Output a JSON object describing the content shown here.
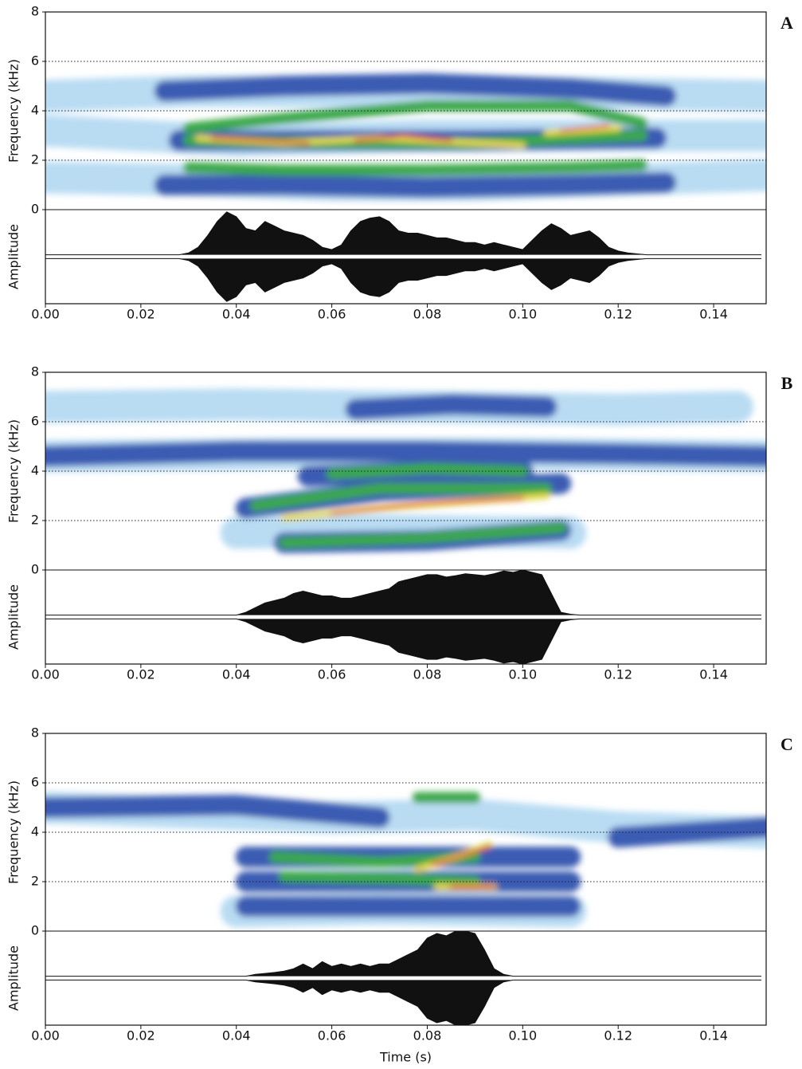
{
  "chart_data": [
    {
      "type": "spectrogram",
      "label": "A",
      "ylabel": "Frequency (kHz)",
      "ylim": [
        0,
        8
      ],
      "yticks": [
        0,
        2,
        4,
        6,
        8
      ],
      "grid": true,
      "xlim": [
        0,
        0.151
      ],
      "xticks": [
        {
          "value": 0,
          "label": "0.00"
        },
        0.02,
        0.04,
        0.06,
        0.08,
        {
          "value": 0.1,
          "label": "0.10"
        },
        0.12,
        0.14
      ],
      "series": [
        {
          "color": "#b9dcf3",
          "x": [
            0,
            0.03,
            0.06,
            0.09,
            0.12,
            0.151
          ],
          "values": [
            4.6,
            4.8,
            4.8,
            4.8,
            4.7,
            4.6
          ]
        },
        {
          "color": "#b9dcf3",
          "x": [
            0,
            0.03,
            0.06,
            0.09,
            0.12,
            0.151
          ],
          "values": [
            1.3,
            1.2,
            1.0,
            1.0,
            1.2,
            1.4
          ]
        },
        {
          "color": "#b9dcf3",
          "x": [
            0,
            0.04,
            0.08,
            0.12,
            0.151
          ],
          "values": [
            3.2,
            2.8,
            3.0,
            3.0,
            3.0
          ]
        },
        {
          "color": "#3b5bb2",
          "x": [
            0.025,
            0.05,
            0.08,
            0.11,
            0.13
          ],
          "values": [
            4.8,
            5.0,
            5.1,
            4.9,
            4.6
          ]
        },
        {
          "color": "#3b5bb2",
          "x": [
            0.025,
            0.05,
            0.08,
            0.11,
            0.13
          ],
          "values": [
            1.0,
            1.0,
            0.9,
            1.0,
            1.1
          ]
        },
        {
          "color": "#3b5bb2",
          "x": [
            0.028,
            0.06,
            0.09,
            0.128
          ],
          "values": [
            2.8,
            2.8,
            2.8,
            2.9
          ]
        },
        {
          "color": "#3aa84a",
          "x": [
            0.03,
            0.05,
            0.08,
            0.11,
            0.125
          ],
          "values": [
            3.3,
            3.7,
            4.2,
            4.2,
            3.5
          ]
        },
        {
          "color": "#3aa84a",
          "x": [
            0.03,
            0.05,
            0.08,
            0.11,
            0.125
          ],
          "values": [
            1.7,
            1.6,
            1.6,
            1.7,
            1.8
          ]
        },
        {
          "color": "#3aa84a",
          "x": [
            0.03,
            0.06,
            0.09,
            0.125
          ],
          "values": [
            2.8,
            2.7,
            2.7,
            3.0
          ]
        },
        {
          "color": "#e6d94c",
          "x": [
            0.032,
            0.05,
            0.07,
            0.09,
            0.1
          ],
          "values": [
            2.9,
            2.7,
            2.9,
            2.7,
            2.6
          ]
        },
        {
          "color": "#e6d94c",
          "x": [
            0.105,
            0.12
          ],
          "values": [
            3.1,
            3.3
          ]
        },
        {
          "color": "#e2452b",
          "x": [
            0.035,
            0.045,
            0.055
          ],
          "values": [
            2.9,
            2.8,
            2.7
          ]
        },
        {
          "color": "#e2452b",
          "x": [
            0.065,
            0.075,
            0.085
          ],
          "values": [
            2.8,
            3.0,
            2.8
          ]
        },
        {
          "color": "#e2452b",
          "x": [
            0.108,
            0.118
          ],
          "values": [
            3.2,
            3.4
          ]
        }
      ],
      "waveform": {
        "ylabel": "Amplitude",
        "ylim": [
          -1,
          1
        ],
        "x": [
          0,
          0.002,
          0.004,
          0.006,
          0.008,
          0.01,
          0.012,
          0.014,
          0.016,
          0.018,
          0.02,
          0.022,
          0.024,
          0.026,
          0.028,
          0.03,
          0.032,
          0.034,
          0.036,
          0.038,
          0.04,
          0.042,
          0.044,
          0.046,
          0.048,
          0.05,
          0.052,
          0.054,
          0.056,
          0.058,
          0.06,
          0.062,
          0.064,
          0.066,
          0.068,
          0.07,
          0.072,
          0.074,
          0.076,
          0.078,
          0.08,
          0.082,
          0.084,
          0.086,
          0.088,
          0.09,
          0.092,
          0.094,
          0.096,
          0.098,
          0.1,
          0.102,
          0.104,
          0.106,
          0.108,
          0.11,
          0.112,
          0.114,
          0.116,
          0.118,
          0.12,
          0.122,
          0.124,
          0.126,
          0.128,
          0.13,
          0.132,
          0.134,
          0.136,
          0.138,
          0.14,
          0.142,
          0.144,
          0.146,
          0.148,
          0.15
        ],
        "values": [
          0.04,
          0.04,
          0.04,
          0.04,
          0.04,
          0.04,
          0.04,
          0.04,
          0.04,
          0.04,
          0.04,
          0.04,
          0.04,
          0.04,
          0.04,
          0.08,
          0.2,
          0.45,
          0.75,
          0.95,
          0.85,
          0.6,
          0.55,
          0.75,
          0.65,
          0.55,
          0.5,
          0.45,
          0.35,
          0.2,
          0.15,
          0.25,
          0.55,
          0.75,
          0.82,
          0.85,
          0.75,
          0.55,
          0.5,
          0.5,
          0.45,
          0.4,
          0.4,
          0.35,
          0.3,
          0.3,
          0.25,
          0.3,
          0.25,
          0.2,
          0.15,
          0.35,
          0.55,
          0.7,
          0.6,
          0.45,
          0.5,
          0.55,
          0.4,
          0.2,
          0.12,
          0.08,
          0.06,
          0.04,
          0.04,
          0.04,
          0.04,
          0.04,
          0.04,
          0.04,
          0.04,
          0.04,
          0.04,
          0.04,
          0.04,
          0.04
        ]
      }
    },
    {
      "type": "spectrogram",
      "label": "B",
      "ylabel": "Frequency (kHz)",
      "ylim": [
        0,
        8
      ],
      "yticks": [
        0,
        2,
        4,
        6,
        8
      ],
      "grid": true,
      "xlim": [
        0,
        0.151
      ],
      "xticks": [
        {
          "value": 0,
          "label": "0.00"
        },
        0.02,
        0.04,
        0.06,
        0.08,
        {
          "value": 0.1,
          "label": "0.10"
        },
        0.12,
        0.14
      ],
      "series": [
        {
          "color": "#b9dcf3",
          "x": [
            0,
            0.04,
            0.08,
            0.12,
            0.145
          ],
          "values": [
            6.6,
            6.7,
            6.6,
            6.5,
            6.6
          ]
        },
        {
          "color": "#b9dcf3",
          "x": [
            0,
            0.05,
            0.1,
            0.151
          ],
          "values": [
            4.6,
            4.7,
            4.7,
            4.6
          ]
        },
        {
          "color": "#b9dcf3",
          "x": [
            0.04,
            0.07,
            0.11
          ],
          "values": [
            1.5,
            1.6,
            1.5
          ]
        },
        {
          "color": "#3b5bb2",
          "x": [
            0,
            0.04,
            0.08,
            0.12,
            0.151
          ],
          "values": [
            4.6,
            4.8,
            4.8,
            4.7,
            4.6
          ]
        },
        {
          "color": "#3b5bb2",
          "x": [
            0.065,
            0.085,
            0.105
          ],
          "values": [
            6.5,
            6.7,
            6.6
          ]
        },
        {
          "color": "#3b5bb2",
          "x": [
            0.042,
            0.07,
            0.108
          ],
          "values": [
            2.5,
            3.2,
            3.5
          ]
        },
        {
          "color": "#3b5bb2",
          "x": [
            0.05,
            0.08,
            0.108
          ],
          "values": [
            1.1,
            1.2,
            1.6
          ]
        },
        {
          "color": "#3b5bb2",
          "x": [
            0.055,
            0.08,
            0.1
          ],
          "values": [
            3.8,
            4.0,
            4.0
          ]
        },
        {
          "color": "#3aa84a",
          "x": [
            0.044,
            0.07,
            0.105
          ],
          "values": [
            2.6,
            3.3,
            3.3
          ]
        },
        {
          "color": "#3aa84a",
          "x": [
            0.05,
            0.08,
            0.108
          ],
          "values": [
            1.1,
            1.3,
            1.7
          ]
        },
        {
          "color": "#3aa84a",
          "x": [
            0.06,
            0.08,
            0.1
          ],
          "values": [
            3.9,
            4.1,
            4.0
          ]
        },
        {
          "color": "#e6d94c",
          "x": [
            0.05,
            0.07,
            0.09,
            0.105
          ],
          "values": [
            2.1,
            2.5,
            2.8,
            3.0
          ]
        },
        {
          "color": "#e2452b",
          "x": [
            0.06,
            0.08,
            0.1
          ],
          "values": [
            2.3,
            2.7,
            2.9
          ]
        }
      ],
      "waveform": {
        "ylabel": "Amplitude",
        "ylim": [
          -1,
          1
        ],
        "x": [
          0,
          0.002,
          0.004,
          0.006,
          0.008,
          0.01,
          0.012,
          0.014,
          0.016,
          0.018,
          0.02,
          0.022,
          0.024,
          0.026,
          0.028,
          0.03,
          0.032,
          0.034,
          0.036,
          0.038,
          0.04,
          0.042,
          0.044,
          0.046,
          0.048,
          0.05,
          0.052,
          0.054,
          0.056,
          0.058,
          0.06,
          0.062,
          0.064,
          0.066,
          0.068,
          0.07,
          0.072,
          0.074,
          0.076,
          0.078,
          0.08,
          0.082,
          0.084,
          0.086,
          0.088,
          0.09,
          0.092,
          0.094,
          0.096,
          0.098,
          0.1,
          0.102,
          0.104,
          0.106,
          0.108,
          0.11,
          0.112,
          0.114,
          0.116,
          0.118,
          0.12,
          0.122,
          0.124,
          0.126,
          0.128,
          0.13,
          0.132,
          0.134,
          0.136,
          0.138,
          0.14,
          0.142,
          0.144,
          0.146,
          0.148,
          0.15
        ],
        "values": [
          0.04,
          0.04,
          0.04,
          0.04,
          0.04,
          0.04,
          0.04,
          0.04,
          0.04,
          0.04,
          0.04,
          0.04,
          0.04,
          0.04,
          0.04,
          0.04,
          0.04,
          0.04,
          0.04,
          0.04,
          0.04,
          0.1,
          0.2,
          0.3,
          0.35,
          0.4,
          0.5,
          0.55,
          0.5,
          0.45,
          0.45,
          0.4,
          0.4,
          0.45,
          0.5,
          0.55,
          0.6,
          0.75,
          0.8,
          0.85,
          0.9,
          0.9,
          0.85,
          0.88,
          0.92,
          0.9,
          0.88,
          0.92,
          0.98,
          0.95,
          1.0,
          0.95,
          0.9,
          0.5,
          0.1,
          0.06,
          0.04,
          0.04,
          0.04,
          0.04,
          0.04,
          0.04,
          0.04,
          0.04,
          0.04,
          0.04,
          0.04,
          0.04,
          0.04,
          0.04,
          0.04,
          0.04,
          0.04,
          0.04,
          0.04,
          0.04
        ]
      }
    },
    {
      "type": "spectrogram",
      "label": "C",
      "ylabel": "Frequency (kHz)",
      "ylim": [
        0,
        8
      ],
      "yticks": [
        0,
        2,
        4,
        6,
        8
      ],
      "grid": true,
      "xlim": [
        0,
        0.151
      ],
      "xticks": [
        {
          "value": 0,
          "label": "0.00"
        },
        0.02,
        0.04,
        0.06,
        0.08,
        {
          "value": 0.1,
          "label": "0.10"
        },
        0.12,
        0.14
      ],
      "xlabel": "Time (s)",
      "series": [
        {
          "color": "#b9dcf3",
          "x": [
            0,
            0.03,
            0.06,
            0.09,
            0.12,
            0.151
          ],
          "values": [
            5.0,
            4.8,
            4.6,
            4.7,
            4.2,
            4.0
          ]
        },
        {
          "color": "#b9dcf3",
          "x": [
            0.04,
            0.07,
            0.11
          ],
          "values": [
            0.8,
            0.9,
            0.8
          ]
        },
        {
          "color": "#3b5bb2",
          "x": [
            0.042,
            0.07,
            0.1,
            0.11
          ],
          "values": [
            3.0,
            3.0,
            3.0,
            3.0
          ]
        },
        {
          "color": "#3b5bb2",
          "x": [
            0.042,
            0.07,
            0.11
          ],
          "values": [
            1.0,
            1.0,
            1.0
          ]
        },
        {
          "color": "#3b5bb2",
          "x": [
            0.042,
            0.07,
            0.11
          ],
          "values": [
            2.0,
            2.0,
            2.0
          ]
        },
        {
          "color": "#3b5bb2",
          "x": [
            0,
            0.04,
            0.07
          ],
          "values": [
            5.0,
            5.1,
            4.6
          ]
        },
        {
          "color": "#3b5bb2",
          "x": [
            0.12,
            0.151
          ],
          "values": [
            3.8,
            4.2
          ]
        },
        {
          "color": "#3aa84a",
          "x": [
            0.048,
            0.07,
            0.09
          ],
          "values": [
            3.0,
            2.8,
            3.0
          ]
        },
        {
          "color": "#3aa84a",
          "x": [
            0.05,
            0.075,
            0.09
          ],
          "values": [
            2.2,
            2.1,
            2.0
          ]
        },
        {
          "color": "#3aa84a",
          "x": [
            0.078,
            0.09
          ],
          "values": [
            5.4,
            5.4
          ]
        },
        {
          "color": "#e6d94c",
          "x": [
            0.078,
            0.086,
            0.093
          ],
          "values": [
            2.5,
            3.0,
            3.5
          ]
        },
        {
          "color": "#e6d94c",
          "x": [
            0.082,
            0.094
          ],
          "values": [
            1.8,
            1.8
          ]
        },
        {
          "color": "#e2452b",
          "x": [
            0.081,
            0.088,
            0.093
          ],
          "values": [
            2.7,
            3.1,
            3.4
          ]
        },
        {
          "color": "#e2452b",
          "x": [
            0.085,
            0.094
          ],
          "values": [
            1.8,
            1.8
          ]
        }
      ],
      "waveform": {
        "ylabel": "Amplitude",
        "ylim": [
          -1,
          1
        ],
        "x": [
          0,
          0.002,
          0.004,
          0.006,
          0.008,
          0.01,
          0.012,
          0.014,
          0.016,
          0.018,
          0.02,
          0.022,
          0.024,
          0.026,
          0.028,
          0.03,
          0.032,
          0.034,
          0.036,
          0.038,
          0.04,
          0.042,
          0.044,
          0.046,
          0.048,
          0.05,
          0.052,
          0.054,
          0.056,
          0.058,
          0.06,
          0.062,
          0.064,
          0.066,
          0.068,
          0.07,
          0.072,
          0.074,
          0.076,
          0.078,
          0.08,
          0.082,
          0.084,
          0.086,
          0.088,
          0.09,
          0.092,
          0.094,
          0.096,
          0.098,
          0.1,
          0.102,
          0.104,
          0.106,
          0.108,
          0.11,
          0.112,
          0.114,
          0.116,
          0.118,
          0.12,
          0.122,
          0.124,
          0.126,
          0.128,
          0.13,
          0.132,
          0.134,
          0.136,
          0.138,
          0.14,
          0.142,
          0.144,
          0.146,
          0.148,
          0.15
        ],
        "values": [
          0.04,
          0.04,
          0.04,
          0.04,
          0.04,
          0.04,
          0.04,
          0.04,
          0.04,
          0.04,
          0.04,
          0.04,
          0.04,
          0.04,
          0.04,
          0.04,
          0.04,
          0.04,
          0.04,
          0.04,
          0.04,
          0.04,
          0.08,
          0.1,
          0.12,
          0.15,
          0.2,
          0.3,
          0.2,
          0.35,
          0.25,
          0.3,
          0.25,
          0.3,
          0.25,
          0.3,
          0.3,
          0.4,
          0.5,
          0.6,
          0.85,
          0.95,
          0.9,
          1.0,
          1.0,
          0.95,
          0.6,
          0.2,
          0.08,
          0.04,
          0.04,
          0.04,
          0.04,
          0.04,
          0.04,
          0.04,
          0.04,
          0.04,
          0.04,
          0.04,
          0.04,
          0.04,
          0.04,
          0.04,
          0.04,
          0.04,
          0.04,
          0.04,
          0.04,
          0.04,
          0.04,
          0.04,
          0.04,
          0.04,
          0.04,
          0.04
        ]
      }
    }
  ]
}
